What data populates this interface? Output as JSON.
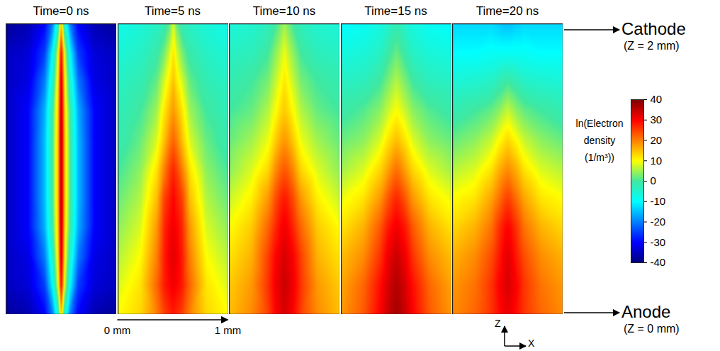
{
  "chart_data": {
    "type": "heatmap",
    "xlim": [
      0,
      1
    ],
    "ylim": [
      0,
      2
    ],
    "xticks": [
      {
        "value": 0,
        "label": "0 mm"
      },
      {
        "value": 1,
        "label": "1 mm"
      }
    ],
    "x": [
      0,
      0.2,
      0.35,
      0.42,
      0.47,
      0.5,
      0.53,
      0.58,
      0.65,
      0.8,
      1
    ],
    "z": [
      0,
      0.2,
      0.4,
      0.6,
      0.8,
      1,
      1.2,
      1.4,
      1.6,
      1.8,
      2
    ],
    "panels": [
      {
        "title": "Time=0 ns",
        "values": [
          [
            -38,
            -36,
            -30,
            -20,
            -5,
            15,
            -5,
            -20,
            -30,
            -36,
            -38
          ],
          [
            -35,
            -33,
            -25,
            -10,
            8,
            30,
            8,
            -10,
            -25,
            -33,
            -35
          ],
          [
            -35,
            -32,
            -20,
            -5,
            12,
            35,
            12,
            -5,
            -20,
            -32,
            -35
          ],
          [
            -35,
            -30,
            -16,
            -1,
            14,
            37,
            14,
            -1,
            -16,
            -30,
            -35
          ],
          [
            -35,
            -30,
            -15,
            0,
            15,
            38,
            15,
            0,
            -15,
            -30,
            -35
          ],
          [
            -35,
            -30,
            -15,
            0,
            15,
            38,
            15,
            0,
            -15,
            -30,
            -35
          ],
          [
            -35,
            -30,
            -15,
            0,
            15,
            38,
            15,
            0,
            -15,
            -30,
            -35
          ],
          [
            -35,
            -30,
            -16,
            -1,
            14,
            37,
            14,
            -1,
            -16,
            -30,
            -35
          ],
          [
            -35,
            -32,
            -20,
            -5,
            12,
            35,
            12,
            -5,
            -20,
            -32,
            -35
          ],
          [
            -35,
            -33,
            -25,
            -10,
            8,
            30,
            8,
            -10,
            -25,
            -33,
            -35
          ],
          [
            -38,
            -36,
            -30,
            -20,
            -5,
            15,
            -5,
            -20,
            -30,
            -36,
            -38
          ]
        ]
      },
      {
        "title": "Time=5 ns",
        "values": [
          [
            10,
            13,
            20,
            25,
            27,
            28,
            27,
            25,
            20,
            13,
            10
          ],
          [
            8,
            12,
            22,
            28,
            30,
            31,
            30,
            28,
            22,
            12,
            8
          ],
          [
            6,
            10,
            20,
            28,
            31,
            32,
            31,
            28,
            20,
            10,
            6
          ],
          [
            4,
            8,
            18,
            27,
            30,
            31,
            30,
            27,
            18,
            8,
            4
          ],
          [
            2,
            6,
            15,
            25,
            28,
            30,
            28,
            25,
            15,
            6,
            2
          ],
          [
            0,
            4,
            12,
            20,
            25,
            27,
            25,
            20,
            12,
            4,
            0
          ],
          [
            -2,
            2,
            8,
            15,
            20,
            22,
            20,
            15,
            8,
            2,
            -2
          ],
          [
            -3,
            0,
            5,
            12,
            16,
            18,
            16,
            12,
            5,
            0,
            -3
          ],
          [
            -4,
            -2,
            2,
            8,
            12,
            15,
            12,
            8,
            2,
            -2,
            -4
          ],
          [
            -6,
            -4,
            -1,
            3,
            8,
            12,
            8,
            3,
            -1,
            -4,
            -6
          ],
          [
            -8,
            -6,
            -4,
            -2,
            2,
            8,
            2,
            -2,
            -4,
            -6,
            -8
          ]
        ]
      },
      {
        "title": "Time=10 ns",
        "values": [
          [
            15,
            19,
            25,
            30,
            32,
            33,
            32,
            30,
            25,
            19,
            15
          ],
          [
            14,
            18,
            26,
            31,
            33,
            34,
            33,
            31,
            26,
            18,
            14
          ],
          [
            12,
            16,
            25,
            30,
            32,
            33,
            32,
            30,
            25,
            16,
            12
          ],
          [
            10,
            14,
            22,
            27,
            30,
            31,
            30,
            27,
            22,
            14,
            10
          ],
          [
            7,
            11,
            18,
            24,
            27,
            28,
            27,
            24,
            18,
            11,
            7
          ],
          [
            4,
            8,
            13,
            19,
            22,
            23,
            22,
            19,
            13,
            8,
            4
          ],
          [
            2,
            5,
            9,
            14,
            17,
            18,
            17,
            14,
            9,
            5,
            2
          ],
          [
            0,
            2,
            6,
            10,
            13,
            14,
            13,
            10,
            6,
            2,
            0
          ],
          [
            -2,
            0,
            3,
            7,
            10,
            12,
            10,
            7,
            3,
            0,
            -2
          ],
          [
            -4,
            -3,
            0,
            4,
            7,
            9,
            7,
            4,
            0,
            -3,
            -4
          ],
          [
            -6,
            -5,
            -3,
            0,
            3,
            5,
            3,
            0,
            -3,
            -5,
            -6
          ]
        ]
      },
      {
        "title": "Time=15 ns",
        "values": [
          [
            18,
            23,
            30,
            34,
            36,
            37,
            36,
            34,
            30,
            23,
            18
          ],
          [
            17,
            22,
            29,
            33,
            35,
            36,
            35,
            33,
            29,
            22,
            17
          ],
          [
            15,
            19,
            26,
            31,
            33,
            34,
            33,
            31,
            26,
            19,
            15
          ],
          [
            12,
            16,
            23,
            28,
            30,
            31,
            30,
            28,
            23,
            16,
            12
          ],
          [
            9,
            12,
            18,
            23,
            26,
            27,
            26,
            23,
            18,
            12,
            9
          ],
          [
            5,
            8,
            13,
            17,
            20,
            21,
            20,
            17,
            13,
            8,
            5
          ],
          [
            2,
            4,
            8,
            12,
            14,
            15,
            14,
            12,
            8,
            4,
            2
          ],
          [
            -1,
            1,
            4,
            7,
            9,
            10,
            9,
            7,
            4,
            1,
            -1
          ],
          [
            -4,
            -3,
            0,
            3,
            5,
            6,
            5,
            3,
            0,
            -3,
            -4
          ],
          [
            -7,
            -6,
            -4,
            -1,
            1,
            2,
            1,
            -1,
            -4,
            -6,
            -7
          ],
          [
            -10,
            -9,
            -7,
            -5,
            -3,
            -2,
            -3,
            -5,
            -7,
            -9,
            -10
          ]
        ]
      },
      {
        "title": "Time=20 ns",
        "values": [
          [
            19,
            22,
            26,
            29,
            31,
            31,
            31,
            29,
            26,
            22,
            19
          ],
          [
            18,
            21,
            26,
            30,
            32,
            33,
            32,
            30,
            26,
            21,
            18
          ],
          [
            16,
            19,
            24,
            28,
            31,
            32,
            31,
            28,
            24,
            19,
            16
          ],
          [
            13,
            16,
            21,
            26,
            29,
            30,
            29,
            26,
            21,
            16,
            13
          ],
          [
            10,
            12,
            17,
            21,
            24,
            25,
            24,
            21,
            17,
            12,
            10
          ],
          [
            6,
            8,
            12,
            16,
            18,
            19,
            18,
            16,
            12,
            8,
            6
          ],
          [
            2,
            4,
            7,
            10,
            12,
            13,
            12,
            10,
            7,
            4,
            2
          ],
          [
            -2,
            0,
            2,
            4,
            6,
            7,
            6,
            4,
            2,
            0,
            -2
          ],
          [
            -6,
            -5,
            -4,
            -2,
            -1,
            0,
            -1,
            -2,
            -4,
            -5,
            -6
          ],
          [
            -10,
            -10,
            -9,
            -9,
            -9,
            -9,
            -9,
            -9,
            -9,
            -10,
            -10
          ],
          [
            -13,
            -13,
            -13,
            -14,
            -15,
            -15,
            -15,
            -14,
            -13,
            -13,
            -13
          ]
        ]
      }
    ],
    "colorbar": {
      "label": "ln(Electron density (1/m³))",
      "range": [
        -40,
        40
      ],
      "ticks": [
        40,
        30,
        20,
        10,
        0,
        -10,
        -20,
        -30,
        -40
      ]
    },
    "annotations": [
      {
        "text": "Cathode",
        "note": "(Z = 2 mm)",
        "z": 2
      },
      {
        "text": "Anode",
        "note": "(Z = 0 mm)",
        "z": 0
      }
    ],
    "axes_icon": {
      "x": "X",
      "z": "Z"
    }
  }
}
